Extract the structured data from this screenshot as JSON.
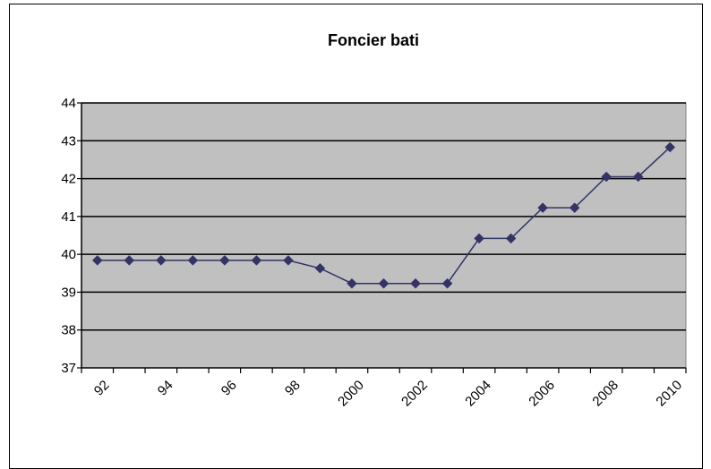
{
  "chart_data": {
    "type": "line",
    "title": "Foncier bati",
    "xlabel": "",
    "ylabel": "",
    "x": [
      1992,
      1993,
      1994,
      1995,
      1996,
      1997,
      1998,
      1999,
      2000,
      2001,
      2002,
      2003,
      2004,
      2005,
      2006,
      2007,
      2008,
      2009,
      2010
    ],
    "x_tick_labels": [
      "92",
      "94",
      "96",
      "98",
      "2000",
      "2002",
      "2004",
      "2006",
      "2008",
      "2010"
    ],
    "series": [
      {
        "values": [
          39.84,
          39.84,
          39.84,
          39.84,
          39.84,
          39.84,
          39.84,
          39.63,
          39.23,
          39.23,
          39.23,
          39.23,
          40.42,
          40.42,
          41.23,
          41.23,
          42.05,
          42.05,
          42.83
        ],
        "color": "#333366",
        "marker": "diamond"
      }
    ],
    "ylim": [
      37,
      44
    ],
    "y_ticks": [
      37,
      38,
      39,
      40,
      41,
      42,
      43,
      44
    ],
    "grid": true,
    "plot_background": "#c0c0c0",
    "legend": "none"
  }
}
